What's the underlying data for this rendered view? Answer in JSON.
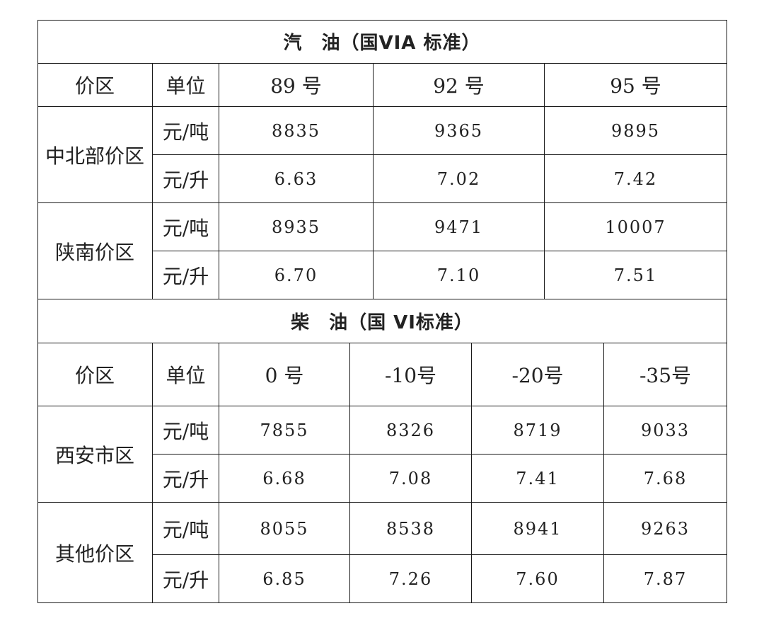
{
  "gasoline": {
    "title": "汽　油（国VIA 标准）",
    "headers": [
      "价区",
      "单位",
      "89 号",
      "92 号",
      "95 号"
    ],
    "regions": [
      {
        "name": "中北部价区",
        "rows": [
          {
            "unit": "元/吨",
            "values": [
              "8835",
              "9365",
              "9895"
            ]
          },
          {
            "unit": "元/升",
            "values": [
              "6.63",
              "7.02",
              "7.42"
            ]
          }
        ]
      },
      {
        "name": "陕南价区",
        "rows": [
          {
            "unit": "元/吨",
            "values": [
              "8935",
              "9471",
              "10007"
            ]
          },
          {
            "unit": "元/升",
            "values": [
              "6.70",
              "7.10",
              "7.51"
            ]
          }
        ]
      }
    ]
  },
  "diesel": {
    "title": "柴　油（国 VI标准）",
    "headers": [
      "价区",
      "单位",
      "0 号",
      "-10号",
      "-20号",
      "-35号"
    ],
    "regions": [
      {
        "name": "西安市区",
        "rows": [
          {
            "unit": "元/吨",
            "values": [
              "7855",
              "8326",
              "8719",
              "9033"
            ]
          },
          {
            "unit": "元/升",
            "values": [
              "6.68",
              "7.08",
              "7.41",
              "7.68"
            ]
          }
        ]
      },
      {
        "name": "其他价区",
        "rows": [
          {
            "unit": "元/吨",
            "values": [
              "8055",
              "8538",
              "8941",
              "9263"
            ]
          },
          {
            "unit": "元/升",
            "values": [
              "6.85",
              "7.26",
              "7.60",
              "7.87"
            ]
          }
        ]
      }
    ]
  }
}
